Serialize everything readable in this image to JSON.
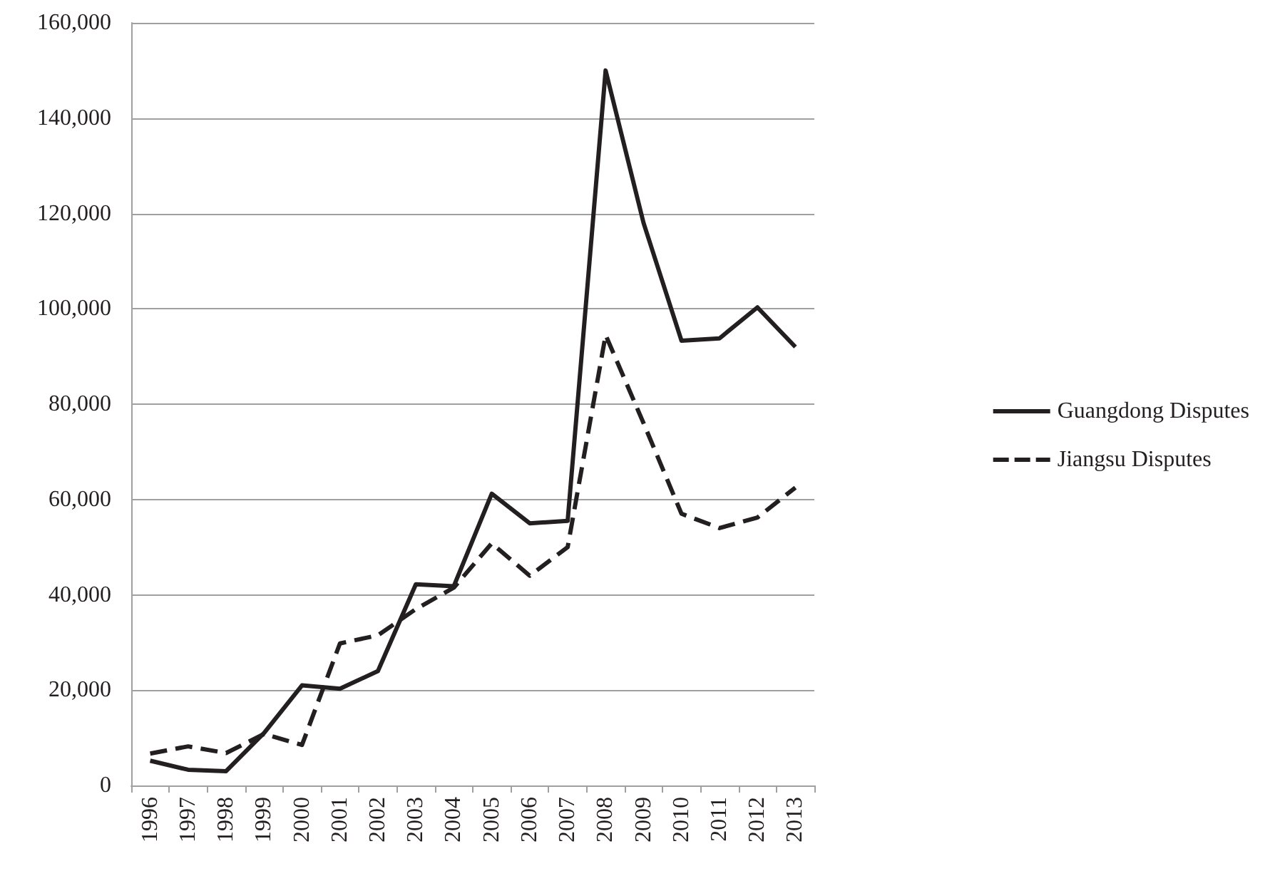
{
  "chart_data": {
    "type": "line",
    "categories": [
      "1996",
      "1997",
      "1998",
      "1999",
      "2000",
      "2001",
      "2002",
      "2003",
      "2004",
      "2005",
      "2006",
      "2007",
      "2008",
      "2009",
      "2010",
      "2011",
      "2012",
      "2013"
    ],
    "series": [
      {
        "name": "Guangdong Disputes",
        "color": "#231f20",
        "line_style": "solid",
        "values": [
          5200,
          3300,
          3000,
          11000,
          21000,
          20300,
          24000,
          42200,
          41800,
          61200,
          55000,
          55500,
          150000,
          118000,
          93300,
          93800,
          100300,
          92000
        ]
      },
      {
        "name": "Jiangsu Disputes",
        "color": "#231f20",
        "line_style": "dashed",
        "values": [
          6700,
          8200,
          6800,
          10800,
          8500,
          29800,
          31500,
          37000,
          41500,
          50800,
          44000,
          50000,
          94500,
          76000,
          57000,
          54000,
          56200,
          62500
        ]
      }
    ],
    "ylim": [
      0,
      160000
    ],
    "yticks": [
      0,
      {
        "value": 20000,
        "label": "20,000"
      },
      {
        "value": 40000,
        "label": "40,000"
      },
      {
        "value": 60000,
        "label": "60,000"
      },
      {
        "value": 80000,
        "label": "80,000"
      },
      {
        "value": 100000,
        "label": "100,000"
      },
      {
        "value": 120000,
        "label": "120,000"
      },
      {
        "value": 140000,
        "label": "140,000"
      },
      {
        "value": 160000,
        "label": "160,000"
      }
    ],
    "grid": "y",
    "legend": "right",
    "marker": "none"
  }
}
